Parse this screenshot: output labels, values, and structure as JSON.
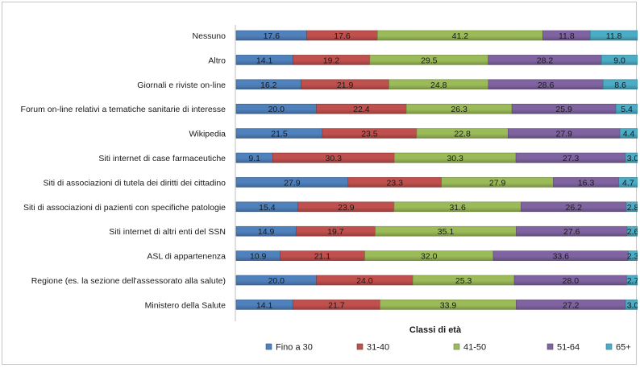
{
  "chart_data": {
    "type": "bar",
    "orientation": "horizontal",
    "stacked": true,
    "percent_stacked": true,
    "title": "",
    "xlabel": "",
    "ylabel": "",
    "legend_title": "Classi di età",
    "legend_position": "bottom",
    "grid": false,
    "categories": [
      "Nessuno",
      "Altro",
      "Giornali e riviste on-line",
      "Forum on-line relativi a tematiche sanitarie di interesse",
      "Wikipedia",
      "Siti internet di case farmaceutiche",
      "Siti di associazioni di tutela dei diritti dei cittadino",
      "Siti di associazioni di pazienti con specifiche patologie",
      "Siti internet di altri enti del SSN",
      "ASL di appartenenza",
      "Regione (es. la sezione dell'assessorato  alla salute)",
      "Ministero della Salute"
    ],
    "series": [
      {
        "name": "Fino a 30",
        "color": "#4f81bd",
        "values": [
          17.6,
          14.1,
          16.2,
          20.0,
          21.5,
          9.1,
          27.9,
          15.4,
          14.9,
          10.9,
          20.0,
          14.1
        ]
      },
      {
        "name": "31-40",
        "color": "#c0504d",
        "values": [
          17.6,
          19.2,
          21.9,
          22.4,
          23.5,
          30.3,
          23.3,
          23.9,
          19.7,
          21.1,
          24.0,
          21.7
        ]
      },
      {
        "name": "41-50",
        "color": "#9bbb59",
        "values": [
          41.2,
          29.5,
          24.8,
          26.3,
          22.8,
          30.3,
          27.9,
          31.6,
          35.1,
          32.0,
          25.3,
          33.9
        ]
      },
      {
        "name": "51-64",
        "color": "#8064a2",
        "values": [
          11.8,
          28.2,
          28.6,
          25.9,
          27.9,
          27.3,
          16.3,
          26.2,
          27.6,
          33.6,
          28.0,
          27.2
        ]
      },
      {
        "name": "65+",
        "color": "#4bacc6",
        "values": [
          11.8,
          9.0,
          8.6,
          5.4,
          4.4,
          3.0,
          4.7,
          2.8,
          2.6,
          2.3,
          2.7,
          3.0
        ]
      }
    ]
  }
}
